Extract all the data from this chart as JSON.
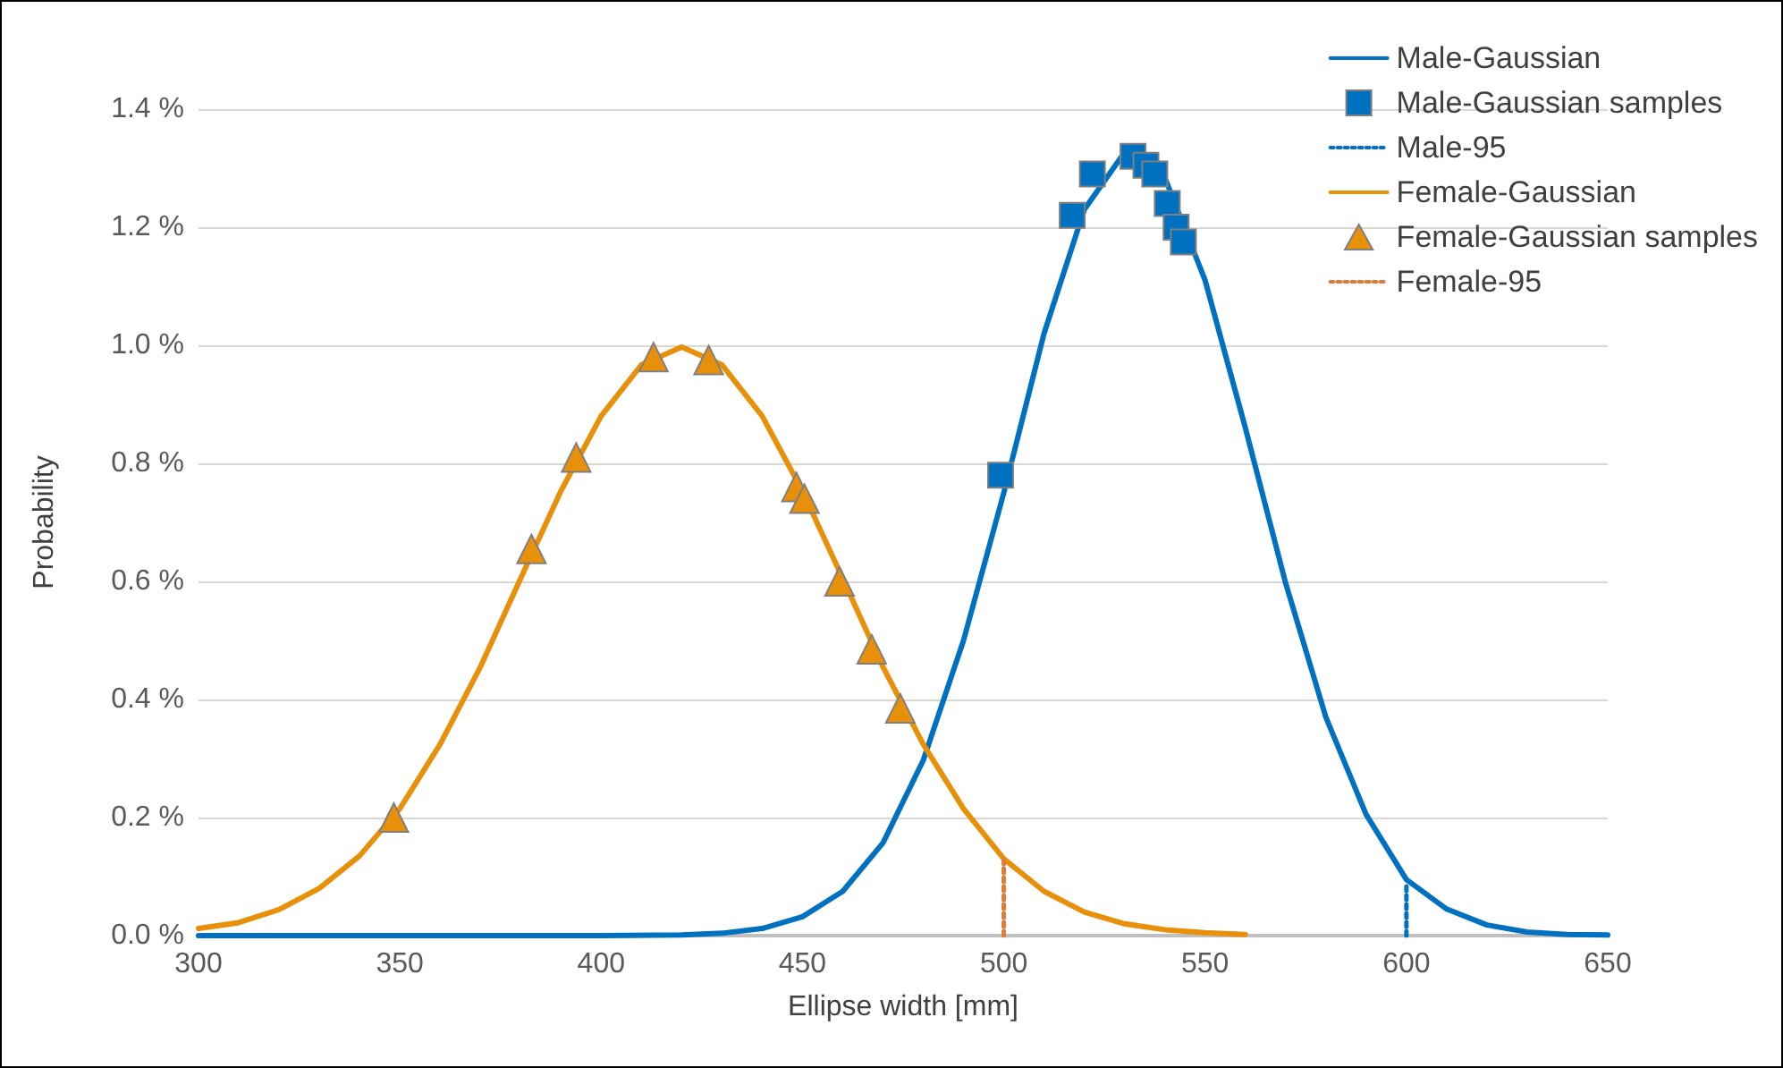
{
  "chart_data": {
    "type": "line",
    "xlabel": "Ellipse width [mm]",
    "ylabel": "Probability",
    "xlim": [
      300,
      650
    ],
    "xticks": [
      300,
      350,
      400,
      450,
      500,
      550,
      600,
      650
    ],
    "ylim": [
      0,
      1.4
    ],
    "yticks": [
      {
        "value": 0,
        "label": "0.0 %"
      },
      {
        "value": 0.2,
        "label": "0.2 %"
      },
      {
        "value": 0.4,
        "label": "0.4 %"
      },
      {
        "value": 0.6,
        "label": "0.6 %"
      },
      {
        "value": 0.8,
        "label": "0.8 %"
      },
      {
        "value": 1.0,
        "label": "1.0 %"
      },
      {
        "value": 1.2,
        "label": "1.2 %"
      },
      {
        "value": 1.4,
        "label": "1.4 %"
      }
    ],
    "grid": "y",
    "legend": "top right",
    "series": [
      {
        "name": "Male-Gaussian",
        "type": "line",
        "color": "#0070c0",
        "marker": "none",
        "line_style": "solid",
        "x": [
          300,
          350,
          400,
          420,
          430,
          440,
          450,
          460,
          470,
          480,
          490,
          500,
          510,
          520,
          530,
          540,
          550,
          560,
          570,
          580,
          590,
          600,
          610,
          620,
          630,
          640,
          650
        ],
        "values": [
          0,
          0,
          0,
          0.001,
          0.004,
          0.012,
          0.032,
          0.075,
          0.157,
          0.297,
          0.5,
          0.75,
          1.02,
          1.23,
          1.327,
          1.284,
          1.11,
          0.86,
          0.597,
          0.37,
          0.205,
          0.095,
          0.045,
          0.018,
          0.006,
          0.002,
          0.001
        ]
      },
      {
        "name": "Male-Gaussian samples",
        "type": "scatter",
        "color": "#0070c0",
        "marker": "square",
        "x": [
          499.2,
          517,
          522,
          532.1,
          535.3,
          537.5,
          540.6,
          542.8,
          544.6
        ],
        "values": [
          0.78,
          1.22,
          1.29,
          1.32,
          1.305,
          1.29,
          1.24,
          1.2,
          1.175
        ]
      },
      {
        "name": "Male-95",
        "type": "line",
        "color": "#0070c0",
        "marker": "none",
        "line_style": "dotted",
        "x": [
          600,
          600
        ],
        "values": [
          0,
          0.09
        ]
      },
      {
        "name": "Female-Gaussian",
        "type": "line",
        "color": "#e8900a",
        "marker": "none",
        "line_style": "solid",
        "x": [
          300,
          310,
          320,
          330,
          340,
          350,
          360,
          370,
          380,
          390,
          400,
          410,
          420,
          430,
          440,
          450,
          460,
          470,
          480,
          490,
          500,
          510,
          520,
          530,
          540,
          550,
          560
        ],
        "values": [
          0.012,
          0.022,
          0.044,
          0.08,
          0.135,
          0.215,
          0.324,
          0.455,
          0.605,
          0.753,
          0.88,
          0.967,
          0.997,
          0.967,
          0.88,
          0.753,
          0.605,
          0.455,
          0.324,
          0.215,
          0.13,
          0.075,
          0.04,
          0.02,
          0.01,
          0.005,
          0.002
        ]
      },
      {
        "name": "Female-Gaussian samples",
        "type": "scatter",
        "color": "#e8900a",
        "marker": "triangle",
        "x": [
          348.5,
          382.7,
          393.8,
          413,
          426.7,
          448.5,
          450.5,
          459.2,
          467.2,
          474.3
        ],
        "values": [
          0.2,
          0.655,
          0.81,
          0.98,
          0.975,
          0.76,
          0.74,
          0.6,
          0.485,
          0.385
        ]
      },
      {
        "name": "Female-95",
        "type": "line",
        "color": "#dd7d3a",
        "marker": "none",
        "line_style": "dotted",
        "x": [
          500,
          500
        ],
        "values": [
          0,
          0.13
        ]
      }
    ]
  }
}
